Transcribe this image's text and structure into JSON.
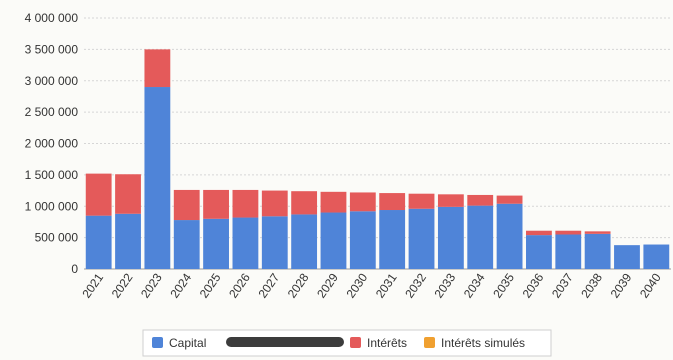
{
  "chart_data": {
    "type": "bar",
    "stacked": true,
    "categories": [
      "2021",
      "2022",
      "2023",
      "2024",
      "2025",
      "2026",
      "2027",
      "2028",
      "2029",
      "2030",
      "2031",
      "2032",
      "2033",
      "2034",
      "2035",
      "2036",
      "2037",
      "2038",
      "2039",
      "2040"
    ],
    "series": [
      {
        "name": "Capital",
        "color": "#4f84d8",
        "values": [
          850000,
          880000,
          2900000,
          780000,
          800000,
          820000,
          840000,
          870000,
          900000,
          920000,
          940000,
          960000,
          990000,
          1010000,
          1040000,
          540000,
          550000,
          560000,
          380000,
          390000
        ]
      },
      {
        "name": "Intérêts",
        "color": "#e45a5a",
        "values": [
          670000,
          630000,
          600000,
          480000,
          460000,
          440000,
          410000,
          370000,
          330000,
          300000,
          270000,
          240000,
          200000,
          170000,
          130000,
          70000,
          60000,
          40000,
          0,
          0
        ]
      },
      {
        "name": "Intérêts simulés",
        "color": "#f0a030",
        "values": [
          0,
          0,
          0,
          0,
          0,
          0,
          0,
          0,
          0,
          0,
          0,
          0,
          0,
          0,
          0,
          0,
          0,
          0,
          0,
          0
        ]
      }
    ],
    "yticks": [
      "0",
      "500 000",
      "1 000 000",
      "1 500 000",
      "2 000 000",
      "2 500 000",
      "3 000 000",
      "3 500 000",
      "4 000 000"
    ],
    "ylim": [
      0,
      4000000
    ],
    "grid": true,
    "legend_position": "bottom"
  }
}
